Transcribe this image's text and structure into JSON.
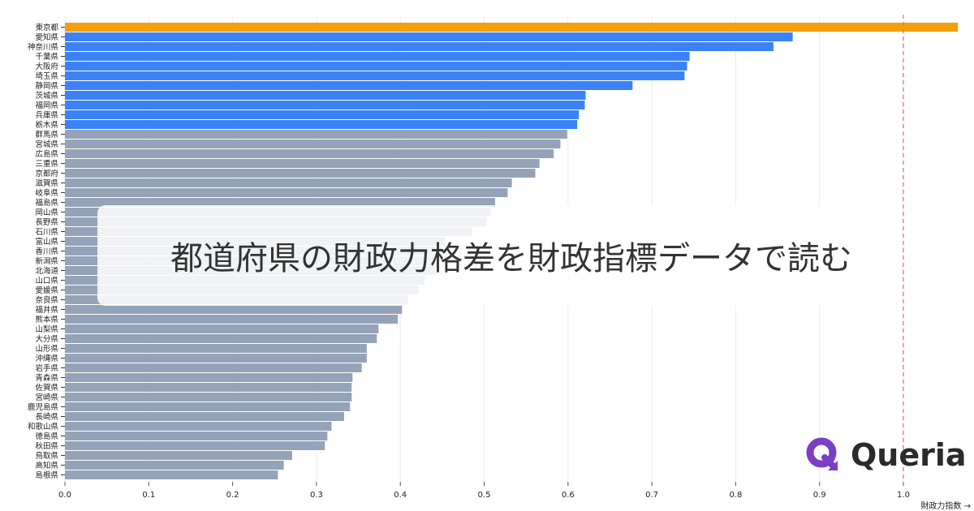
{
  "title": "都道府県の財政力格差を財政指標データで読む",
  "brand": {
    "name": "Queria",
    "color": "#7b3fc4",
    "icon": "q-arrow-logo"
  },
  "colors": {
    "highlight": "#f59e0b",
    "top": "#3b82f6",
    "other": "#94a3b8",
    "reference_line": "#e06666"
  },
  "chart_data": {
    "type": "bar",
    "orientation": "horizontal",
    "xlabel": "財政力指数 →",
    "xlim": [
      0,
      1.07
    ],
    "xticks": [
      "0.0",
      "0.1",
      "0.2",
      "0.3",
      "0.4",
      "0.5",
      "0.6",
      "0.7",
      "0.8",
      "0.9",
      "1.0"
    ],
    "grid": "vertical",
    "reference_line": 1.0,
    "categories": [
      "東京都",
      "愛知県",
      "神奈川県",
      "千葉県",
      "大阪府",
      "埼玉県",
      "静岡県",
      "茨城県",
      "福岡県",
      "兵庫県",
      "栃木県",
      "群馬県",
      "宮城県",
      "広島県",
      "三重県",
      "京都府",
      "滋賀県",
      "岐阜県",
      "福島県",
      "岡山県",
      "長野県",
      "石川県",
      "富山県",
      "香川県",
      "新潟県",
      "北海道",
      "山口県",
      "愛媛県",
      "奈良県",
      "福井県",
      "熊本県",
      "山梨県",
      "大分県",
      "山形県",
      "沖縄県",
      "岩手県",
      "青森県",
      "佐賀県",
      "宮崎県",
      "鹿児島県",
      "長崎県",
      "和歌山県",
      "徳島県",
      "秋田県",
      "鳥取県",
      "高知県",
      "島根県"
    ],
    "values": [
      1.065,
      0.868,
      0.845,
      0.745,
      0.742,
      0.739,
      0.677,
      0.621,
      0.62,
      0.613,
      0.611,
      0.599,
      0.591,
      0.583,
      0.566,
      0.561,
      0.533,
      0.528,
      0.513,
      0.508,
      0.503,
      0.485,
      0.453,
      0.45,
      0.445,
      0.444,
      0.429,
      0.422,
      0.409,
      0.402,
      0.397,
      0.374,
      0.372,
      0.36,
      0.36,
      0.354,
      0.343,
      0.342,
      0.342,
      0.34,
      0.333,
      0.318,
      0.313,
      0.31,
      0.271,
      0.261,
      0.254
    ],
    "color_groups": {
      "highlight": [
        0
      ],
      "top": [
        1,
        2,
        3,
        4,
        5,
        6,
        7,
        8,
        9,
        10
      ]
    }
  }
}
